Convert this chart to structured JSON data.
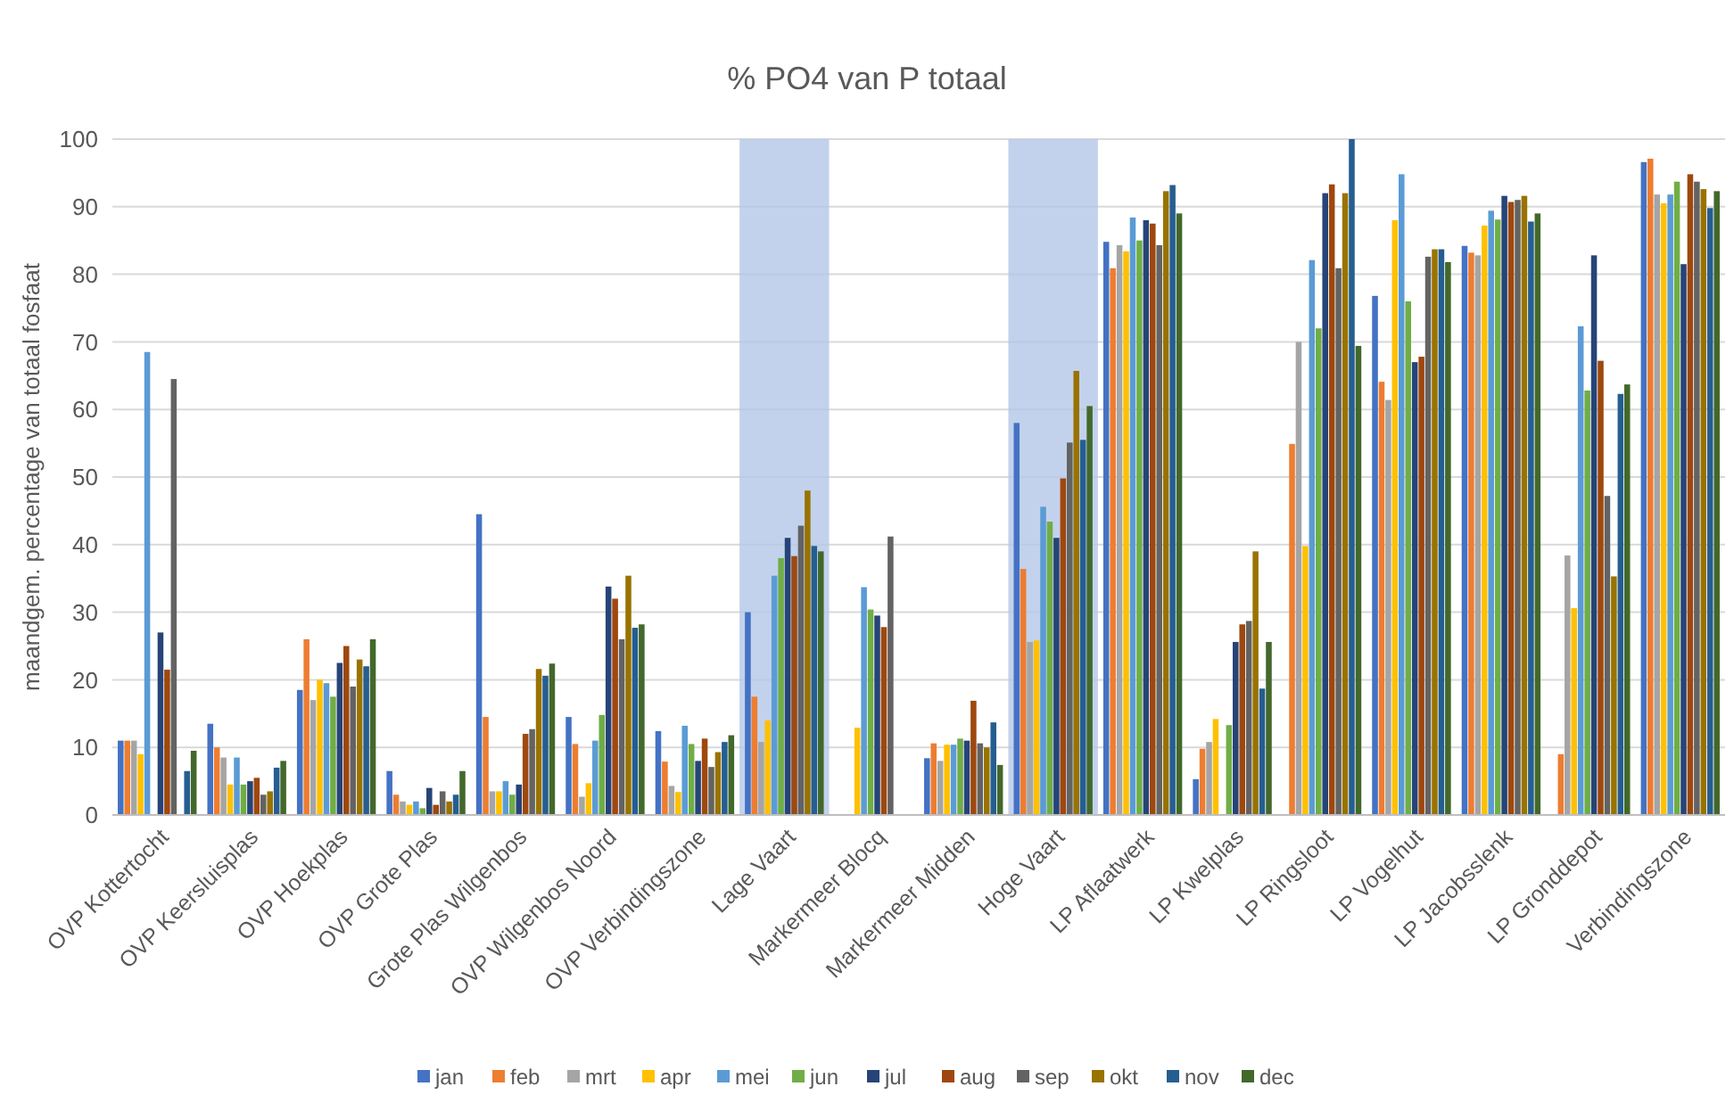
{
  "chart_data": {
    "type": "bar",
    "title": "% PO4 van P totaal",
    "ylabel": "maandgem. percentage van totaal fosfaat",
    "categories": [
      "OVP Kottertocht",
      "OVP Keersluisplas",
      "OVP Hoekplas",
      "OVP Grote Plas",
      "Grote Plas Wilgenbos",
      "OVP Wilgenbos Noord",
      "OVP Verbindingszone",
      "Lage Vaart",
      "Markermeer Blocq",
      "Markermeer Midden",
      "Hoge Vaart",
      "LP Aflaatwerk",
      "LP Kwelplas",
      "LP Ringsloot",
      "LP Vogelhut",
      "LP Jacobsslenk",
      "LP Gronddepot",
      "Verbindingszone"
    ],
    "series": [
      {
        "name": "jan",
        "color": "#4472c4",
        "values": [
          11,
          13.5,
          18.5,
          6.5,
          44.5,
          14.5,
          12.4,
          30,
          null,
          8.4,
          58,
          84.8,
          5.3,
          null,
          76.8,
          84.2,
          null,
          96.6
        ]
      },
      {
        "name": "feb",
        "color": "#ed7d31",
        "values": [
          11,
          10,
          26,
          3,
          14.5,
          10.5,
          7.9,
          17.5,
          null,
          10.6,
          36.4,
          80.9,
          9.8,
          54.9,
          64.1,
          83.2,
          9,
          97.1
        ]
      },
      {
        "name": "mrt",
        "color": "#a5a5a5",
        "values": [
          11,
          8.5,
          17,
          2,
          3.5,
          2.7,
          4.3,
          10.8,
          null,
          8,
          25.6,
          84.3,
          10.8,
          70,
          61.4,
          82.8,
          38.4,
          91.8
        ]
      },
      {
        "name": "apr",
        "color": "#ffc000",
        "values": [
          9,
          4.5,
          20,
          1.5,
          3.5,
          4.7,
          3.4,
          14,
          12.9,
          10.4,
          25.8,
          83.4,
          14.2,
          39.8,
          88,
          87.2,
          30.6,
          90.5
        ]
      },
      {
        "name": "mei",
        "color": "#5b9bd5",
        "values": [
          68.5,
          8.5,
          19.5,
          2,
          5,
          11,
          13.2,
          35.4,
          33.7,
          10.4,
          45.6,
          88.4,
          null,
          82.1,
          94.8,
          89.4,
          72.3,
          91.8
        ]
      },
      {
        "name": "jun",
        "color": "#70ad47",
        "values": [
          null,
          4.5,
          17.5,
          1,
          3,
          14.8,
          10.5,
          38,
          30.4,
          11.3,
          43.4,
          85,
          13.3,
          72,
          76,
          88.1,
          62.8,
          93.7
        ]
      },
      {
        "name": "jul",
        "color": "#264478",
        "values": [
          27,
          5,
          22.5,
          4,
          4.5,
          33.8,
          8,
          41,
          29.5,
          11,
          41,
          88,
          25.6,
          92,
          67,
          91.6,
          82.8,
          81.5
        ]
      },
      {
        "name": "aug",
        "color": "#9e480e",
        "values": [
          21.5,
          5.5,
          25,
          1.5,
          12,
          32,
          11.3,
          38.3,
          27.8,
          16.9,
          49.8,
          87.5,
          28.2,
          93.3,
          67.8,
          90.7,
          67.2,
          94.8
        ]
      },
      {
        "name": "sep",
        "color": "#636363",
        "values": [
          64.5,
          3,
          19,
          3.5,
          12.7,
          26,
          7.1,
          42.8,
          41.2,
          10.6,
          55.1,
          84.3,
          28.7,
          80.9,
          82.6,
          91,
          47.2,
          93.7
        ]
      },
      {
        "name": "okt",
        "color": "#997300",
        "values": [
          null,
          3.5,
          23,
          2,
          21.6,
          35.4,
          9.3,
          48,
          null,
          10,
          65.7,
          92.3,
          39,
          92,
          83.7,
          91.6,
          35.3,
          92.6
        ]
      },
      {
        "name": "nov",
        "color": "#255e91",
        "values": [
          6.5,
          7,
          22,
          3,
          20.6,
          27.7,
          10.8,
          39.8,
          null,
          13.7,
          55.5,
          93.2,
          18.7,
          100,
          83.7,
          87.8,
          62.3,
          89.8
        ]
      },
      {
        "name": "dec",
        "color": "#43682b",
        "values": [
          9.5,
          8,
          26,
          6.5,
          22.4,
          28.2,
          11.8,
          39,
          null,
          7.4,
          60.5,
          89,
          25.6,
          69.4,
          81.8,
          89,
          63.7,
          92.3
        ]
      }
    ],
    "bands": [
      {
        "axis": "x",
        "from": "Lage Vaart",
        "to": "Lage Vaart",
        "color": "#b4c7e7"
      },
      {
        "axis": "x",
        "from": "Hoge Vaart",
        "to": "Hoge Vaart",
        "color": "#b4c7e7"
      }
    ],
    "ylim": [
      0,
      100
    ],
    "yticks": [
      0,
      10,
      20,
      30,
      40,
      50,
      60,
      70,
      80,
      90,
      100
    ],
    "grid": "y",
    "legend": "bottom"
  }
}
